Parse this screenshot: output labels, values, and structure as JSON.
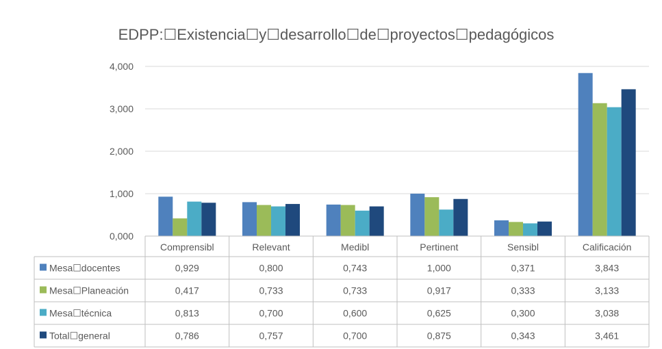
{
  "chart_data": {
    "type": "bar",
    "title": "EDPP:☐Existencia☐y☐desarrollo☐de☐proyectos☐pedagógicos",
    "categories": [
      "Comprensibl",
      "Relevant",
      "Medibl",
      "Pertinent",
      "Sensibl",
      "Calificación"
    ],
    "ylim": [
      0,
      4
    ],
    "yticks": [
      0,
      1,
      2,
      3,
      4
    ],
    "ytick_labels": [
      "0,000",
      "1,000",
      "2,000",
      "3,000",
      "4,000"
    ],
    "grid": true,
    "legend": "data-table",
    "series": [
      {
        "name": "Mesa☐docentes",
        "color": "#4f81bd",
        "values": [
          0.929,
          0.8,
          0.743,
          1.0,
          0.371,
          3.843
        ],
        "labels": [
          "0,929",
          "0,800",
          "0,743",
          "1,000",
          "0,371",
          "3,843"
        ]
      },
      {
        "name": "Mesa☐Planeación",
        "color": "#9bbb59",
        "values": [
          0.417,
          0.733,
          0.733,
          0.917,
          0.333,
          3.133
        ],
        "labels": [
          "0,417",
          "0,733",
          "0,733",
          "0,917",
          "0,333",
          "3,133"
        ]
      },
      {
        "name": "Mesa☐técnica",
        "color": "#4bacc6",
        "values": [
          0.813,
          0.7,
          0.6,
          0.625,
          0.3,
          3.038
        ],
        "labels": [
          "0,813",
          "0,700",
          "0,600",
          "0,625",
          "0,300",
          "3,038"
        ]
      },
      {
        "name": "Total☐general",
        "color": "#1f497d",
        "values": [
          0.786,
          0.757,
          0.7,
          0.875,
          0.343,
          3.461
        ],
        "labels": [
          "0,786",
          "0,757",
          "0,700",
          "0,875",
          "0,343",
          "3,461"
        ]
      }
    ]
  }
}
